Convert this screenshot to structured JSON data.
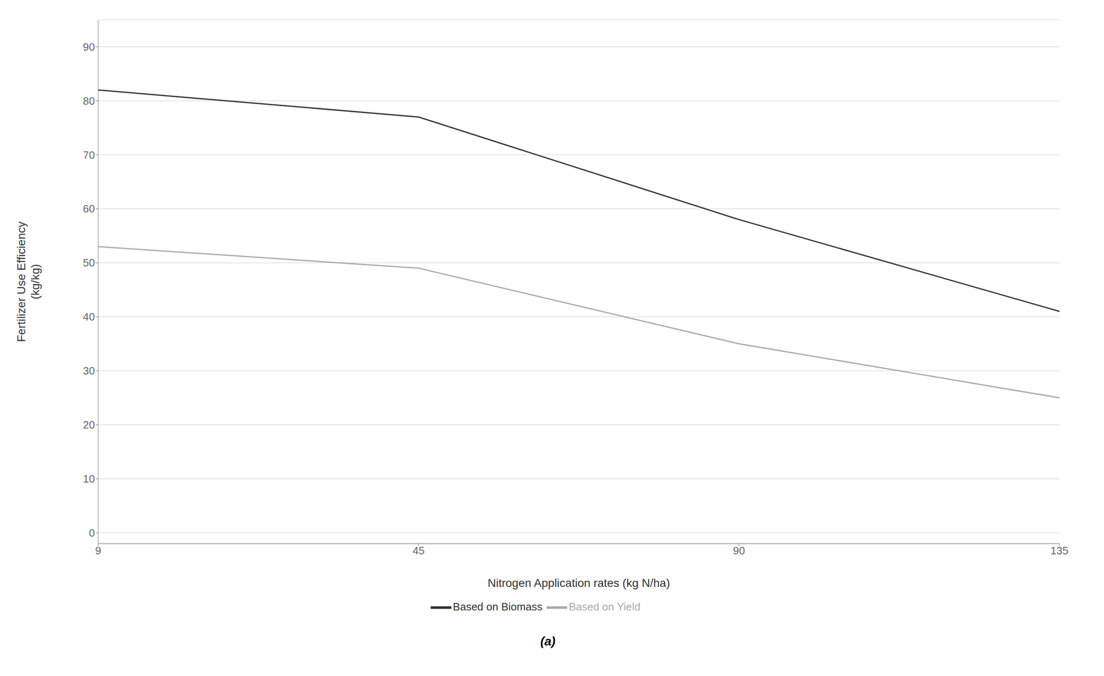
{
  "chart_data": {
    "type": "line",
    "subtitle": "(a)",
    "xlabel": "Nitrogen Application rates (kg N/ha)",
    "ylabel": "Fertilizer Use Efficiency\n(kg/kg)",
    "categories": [
      "9",
      "45",
      "90",
      "135"
    ],
    "series": [
      {
        "name": "Based on Biomass",
        "color": "#333333",
        "values": [
          82,
          77,
          58,
          41
        ]
      },
      {
        "name": "Based on Yield",
        "color": "#aaaaaa",
        "values": [
          53,
          49,
          35,
          25
        ]
      }
    ],
    "ylim": [
      -2,
      95
    ],
    "yticks": [
      0,
      10,
      20,
      30,
      40,
      50,
      60,
      70,
      80,
      90
    ],
    "grid": true,
    "legend": "bottom"
  }
}
